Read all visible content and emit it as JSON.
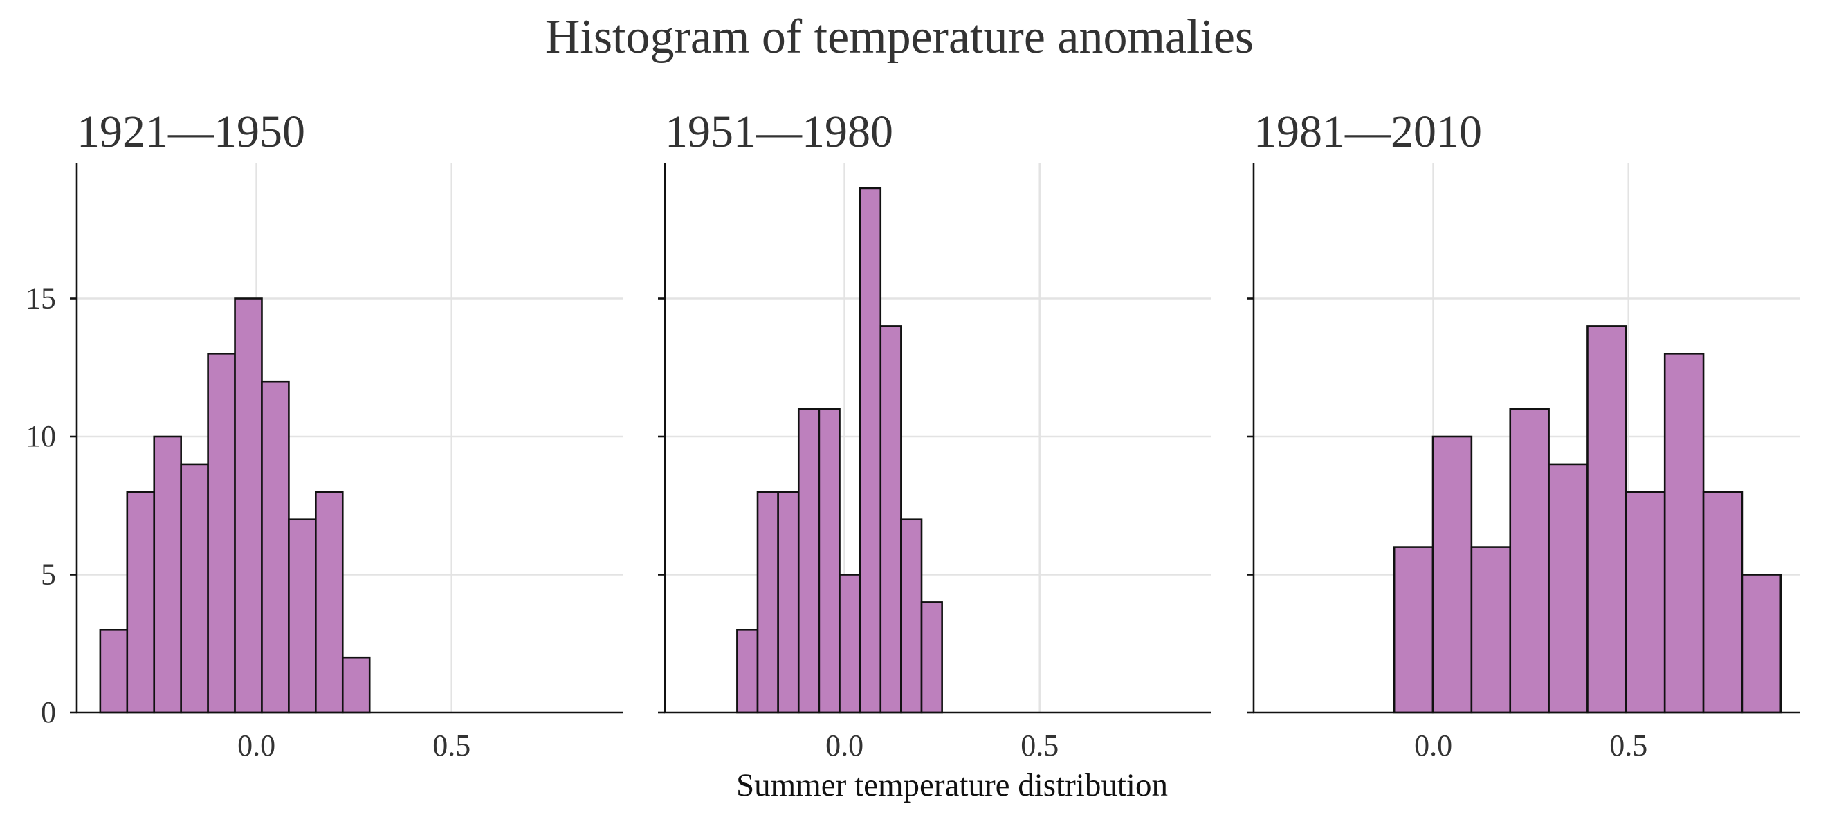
{
  "chart_data": {
    "type": "bar",
    "title": "Histogram of temperature anomalies",
    "xlabel": "Summer temperature distribution",
    "ylabel": "",
    "shared_axes": true,
    "xlim": [
      -0.46,
      0.94
    ],
    "ylim": [
      0,
      19.9
    ],
    "xticks": [
      "0.0",
      "0.5"
    ],
    "xtick_values": [
      0.0,
      0.5
    ],
    "yticks": [
      "0",
      "5",
      "10",
      "15"
    ],
    "ytick_values": [
      0,
      5,
      10,
      15
    ],
    "grid": true,
    "bar_color": "#bd80bd",
    "edge_color": "#111111",
    "panels": [
      {
        "title": "1921—1950",
        "bins_start": -0.4,
        "bin_width": 0.069,
        "values": [
          3,
          8,
          10,
          9,
          13,
          15,
          12,
          7,
          8,
          2
        ]
      },
      {
        "title": "1951—1980",
        "bins_start": -0.275,
        "bin_width": 0.0525,
        "values": [
          3,
          8,
          8,
          11,
          11,
          5,
          19,
          14,
          7,
          4
        ]
      },
      {
        "title": "1981—2010",
        "bins_start": -0.1,
        "bin_width": 0.099,
        "values": [
          6,
          10,
          6,
          11,
          9,
          14,
          8,
          13,
          8,
          5
        ]
      }
    ]
  }
}
